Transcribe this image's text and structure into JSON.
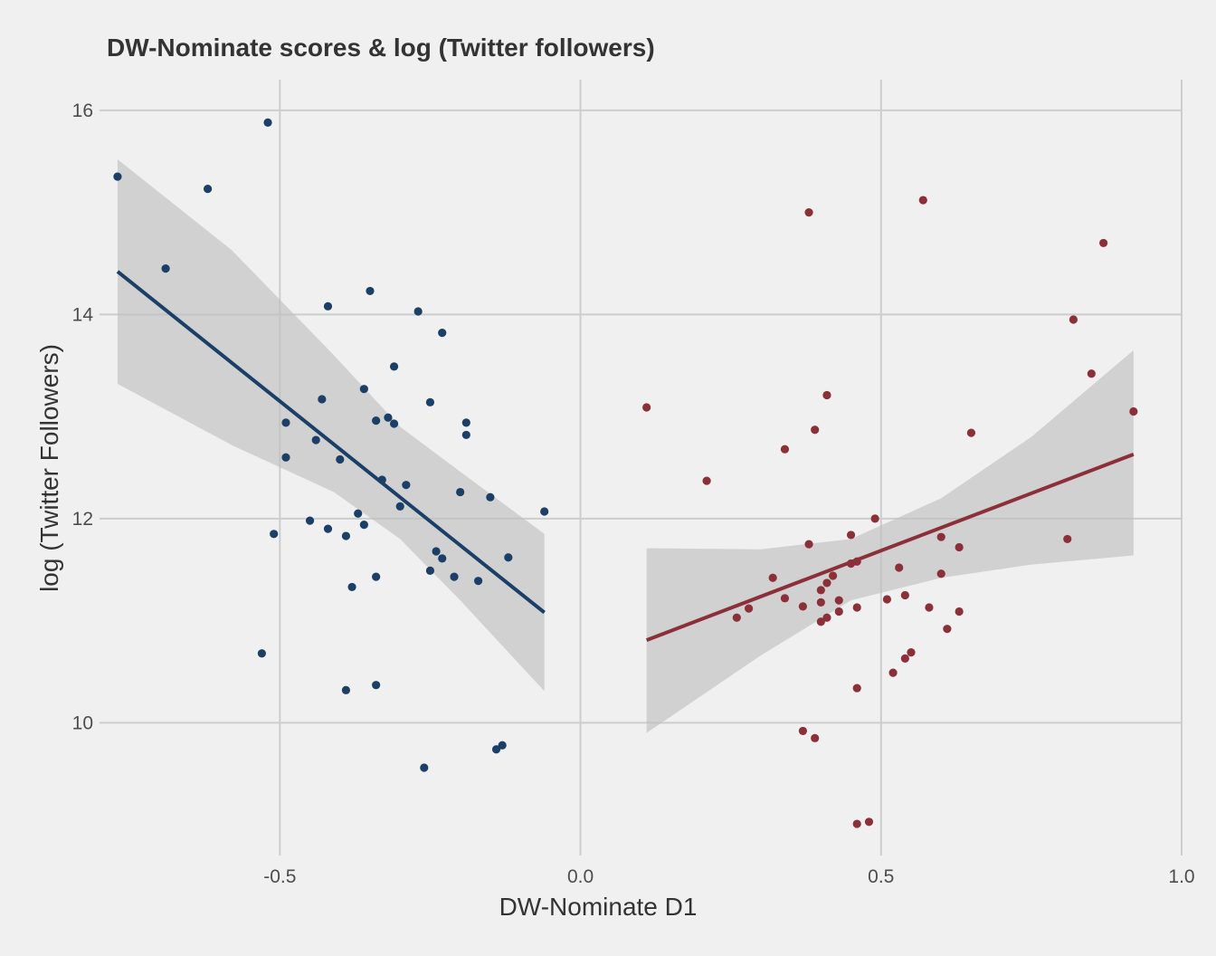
{
  "chart_data": {
    "type": "scatter",
    "title": "DW-Nominate scores & log (Twitter followers)",
    "xlabel": "DW-Nominate D1",
    "ylabel": "log (Twitter Followers)",
    "xlim": [
      -0.8,
      1.0
    ],
    "ylim": [
      8.7,
      16.3
    ],
    "x_ticks": [
      -0.5,
      0.0,
      0.5,
      1.0
    ],
    "x_tick_labels": [
      "-0.5",
      "0.0",
      "0.5",
      "1.0"
    ],
    "y_ticks": [
      10,
      12,
      14,
      16
    ],
    "y_tick_labels": [
      "10",
      "12",
      "14",
      "16"
    ],
    "grid": true,
    "legend": "none",
    "series": [
      {
        "color": "#1b3f66",
        "points": [
          [
            -0.77,
            15.35
          ],
          [
            -0.69,
            14.45
          ],
          [
            -0.62,
            15.23
          ],
          [
            -0.52,
            15.88
          ],
          [
            -0.42,
            14.08
          ],
          [
            -0.35,
            14.23
          ],
          [
            -0.27,
            14.03
          ],
          [
            -0.23,
            13.82
          ],
          [
            -0.31,
            13.49
          ],
          [
            -0.36,
            13.27
          ],
          [
            -0.43,
            13.17
          ],
          [
            -0.25,
            13.14
          ],
          [
            -0.49,
            12.94
          ],
          [
            -0.34,
            12.96
          ],
          [
            -0.32,
            12.99
          ],
          [
            -0.31,
            12.93
          ],
          [
            -0.19,
            12.94
          ],
          [
            -0.19,
            12.82
          ],
          [
            -0.44,
            12.77
          ],
          [
            -0.49,
            12.6
          ],
          [
            -0.4,
            12.58
          ],
          [
            -0.33,
            12.38
          ],
          [
            -0.29,
            12.33
          ],
          [
            -0.3,
            12.12
          ],
          [
            -0.2,
            12.26
          ],
          [
            -0.15,
            12.21
          ],
          [
            -0.06,
            12.07
          ],
          [
            -0.37,
            12.05
          ],
          [
            -0.45,
            11.98
          ],
          [
            -0.36,
            11.94
          ],
          [
            -0.42,
            11.9
          ],
          [
            -0.51,
            11.85
          ],
          [
            -0.39,
            11.83
          ],
          [
            -0.24,
            11.68
          ],
          [
            -0.23,
            11.61
          ],
          [
            -0.12,
            11.62
          ],
          [
            -0.25,
            11.49
          ],
          [
            -0.21,
            11.43
          ],
          [
            -0.34,
            11.43
          ],
          [
            -0.17,
            11.39
          ],
          [
            -0.38,
            11.33
          ],
          [
            -0.53,
            10.68
          ],
          [
            -0.39,
            10.32
          ],
          [
            -0.34,
            10.37
          ],
          [
            -0.13,
            9.78
          ],
          [
            -0.14,
            9.74
          ],
          [
            -0.26,
            9.56
          ]
        ],
        "fit": {
          "x": [
            -0.77,
            -0.06
          ],
          "y": [
            14.42,
            11.08
          ]
        },
        "ci_upper": [
          [
            -0.77,
            15.52
          ],
          [
            -0.58,
            14.63
          ],
          [
            -0.41,
            13.6
          ],
          [
            -0.3,
            12.9
          ],
          [
            -0.2,
            12.46
          ],
          [
            -0.06,
            11.85
          ]
        ],
        "ci_lower": [
          [
            -0.77,
            13.32
          ],
          [
            -0.58,
            12.72
          ],
          [
            -0.41,
            12.26
          ],
          [
            -0.3,
            11.8
          ],
          [
            -0.2,
            11.2
          ],
          [
            -0.06,
            10.31
          ]
        ]
      },
      {
        "color": "#8b3038",
        "points": [
          [
            0.11,
            13.09
          ],
          [
            0.21,
            12.37
          ],
          [
            0.38,
            15.0
          ],
          [
            0.57,
            15.12
          ],
          [
            0.41,
            13.21
          ],
          [
            0.39,
            12.87
          ],
          [
            0.34,
            12.68
          ],
          [
            0.87,
            14.7
          ],
          [
            0.82,
            13.95
          ],
          [
            0.85,
            13.42
          ],
          [
            0.92,
            13.05
          ],
          [
            0.65,
            12.84
          ],
          [
            0.49,
            12.0
          ],
          [
            0.45,
            11.84
          ],
          [
            0.6,
            11.82
          ],
          [
            0.81,
            11.8
          ],
          [
            0.38,
            11.75
          ],
          [
            0.63,
            11.72
          ],
          [
            0.46,
            11.58
          ],
          [
            0.45,
            11.56
          ],
          [
            0.53,
            11.52
          ],
          [
            0.6,
            11.46
          ],
          [
            0.42,
            11.44
          ],
          [
            0.41,
            11.37
          ],
          [
            0.32,
            11.42
          ],
          [
            0.4,
            11.3
          ],
          [
            0.34,
            11.22
          ],
          [
            0.54,
            11.25
          ],
          [
            0.51,
            11.21
          ],
          [
            0.37,
            11.14
          ],
          [
            0.4,
            11.18
          ],
          [
            0.43,
            11.2
          ],
          [
            0.46,
            11.13
          ],
          [
            0.28,
            11.12
          ],
          [
            0.58,
            11.13
          ],
          [
            0.63,
            11.09
          ],
          [
            0.43,
            11.09
          ],
          [
            0.41,
            11.03
          ],
          [
            0.26,
            11.03
          ],
          [
            0.4,
            10.99
          ],
          [
            0.61,
            10.92
          ],
          [
            0.55,
            10.69
          ],
          [
            0.54,
            10.63
          ],
          [
            0.52,
            10.49
          ],
          [
            0.46,
            10.34
          ],
          [
            0.37,
            9.92
          ],
          [
            0.39,
            9.85
          ],
          [
            0.48,
            9.03
          ],
          [
            0.46,
            9.01
          ]
        ],
        "fit": {
          "x": [
            0.11,
            0.92
          ],
          "y": [
            10.81,
            12.63
          ]
        },
        "ci_upper": [
          [
            0.11,
            11.71
          ],
          [
            0.3,
            11.7
          ],
          [
            0.45,
            11.8
          ],
          [
            0.6,
            12.2
          ],
          [
            0.75,
            12.8
          ],
          [
            0.92,
            13.65
          ]
        ],
        "ci_lower": [
          [
            0.11,
            9.9
          ],
          [
            0.3,
            10.66
          ],
          [
            0.45,
            11.2
          ],
          [
            0.6,
            11.42
          ],
          [
            0.75,
            11.55
          ],
          [
            0.92,
            11.64
          ]
        ]
      }
    ]
  },
  "style": {
    "background": "#f0f0f0",
    "grid_color": "#cdcdcd",
    "ribbon_color": "#bebebe"
  }
}
